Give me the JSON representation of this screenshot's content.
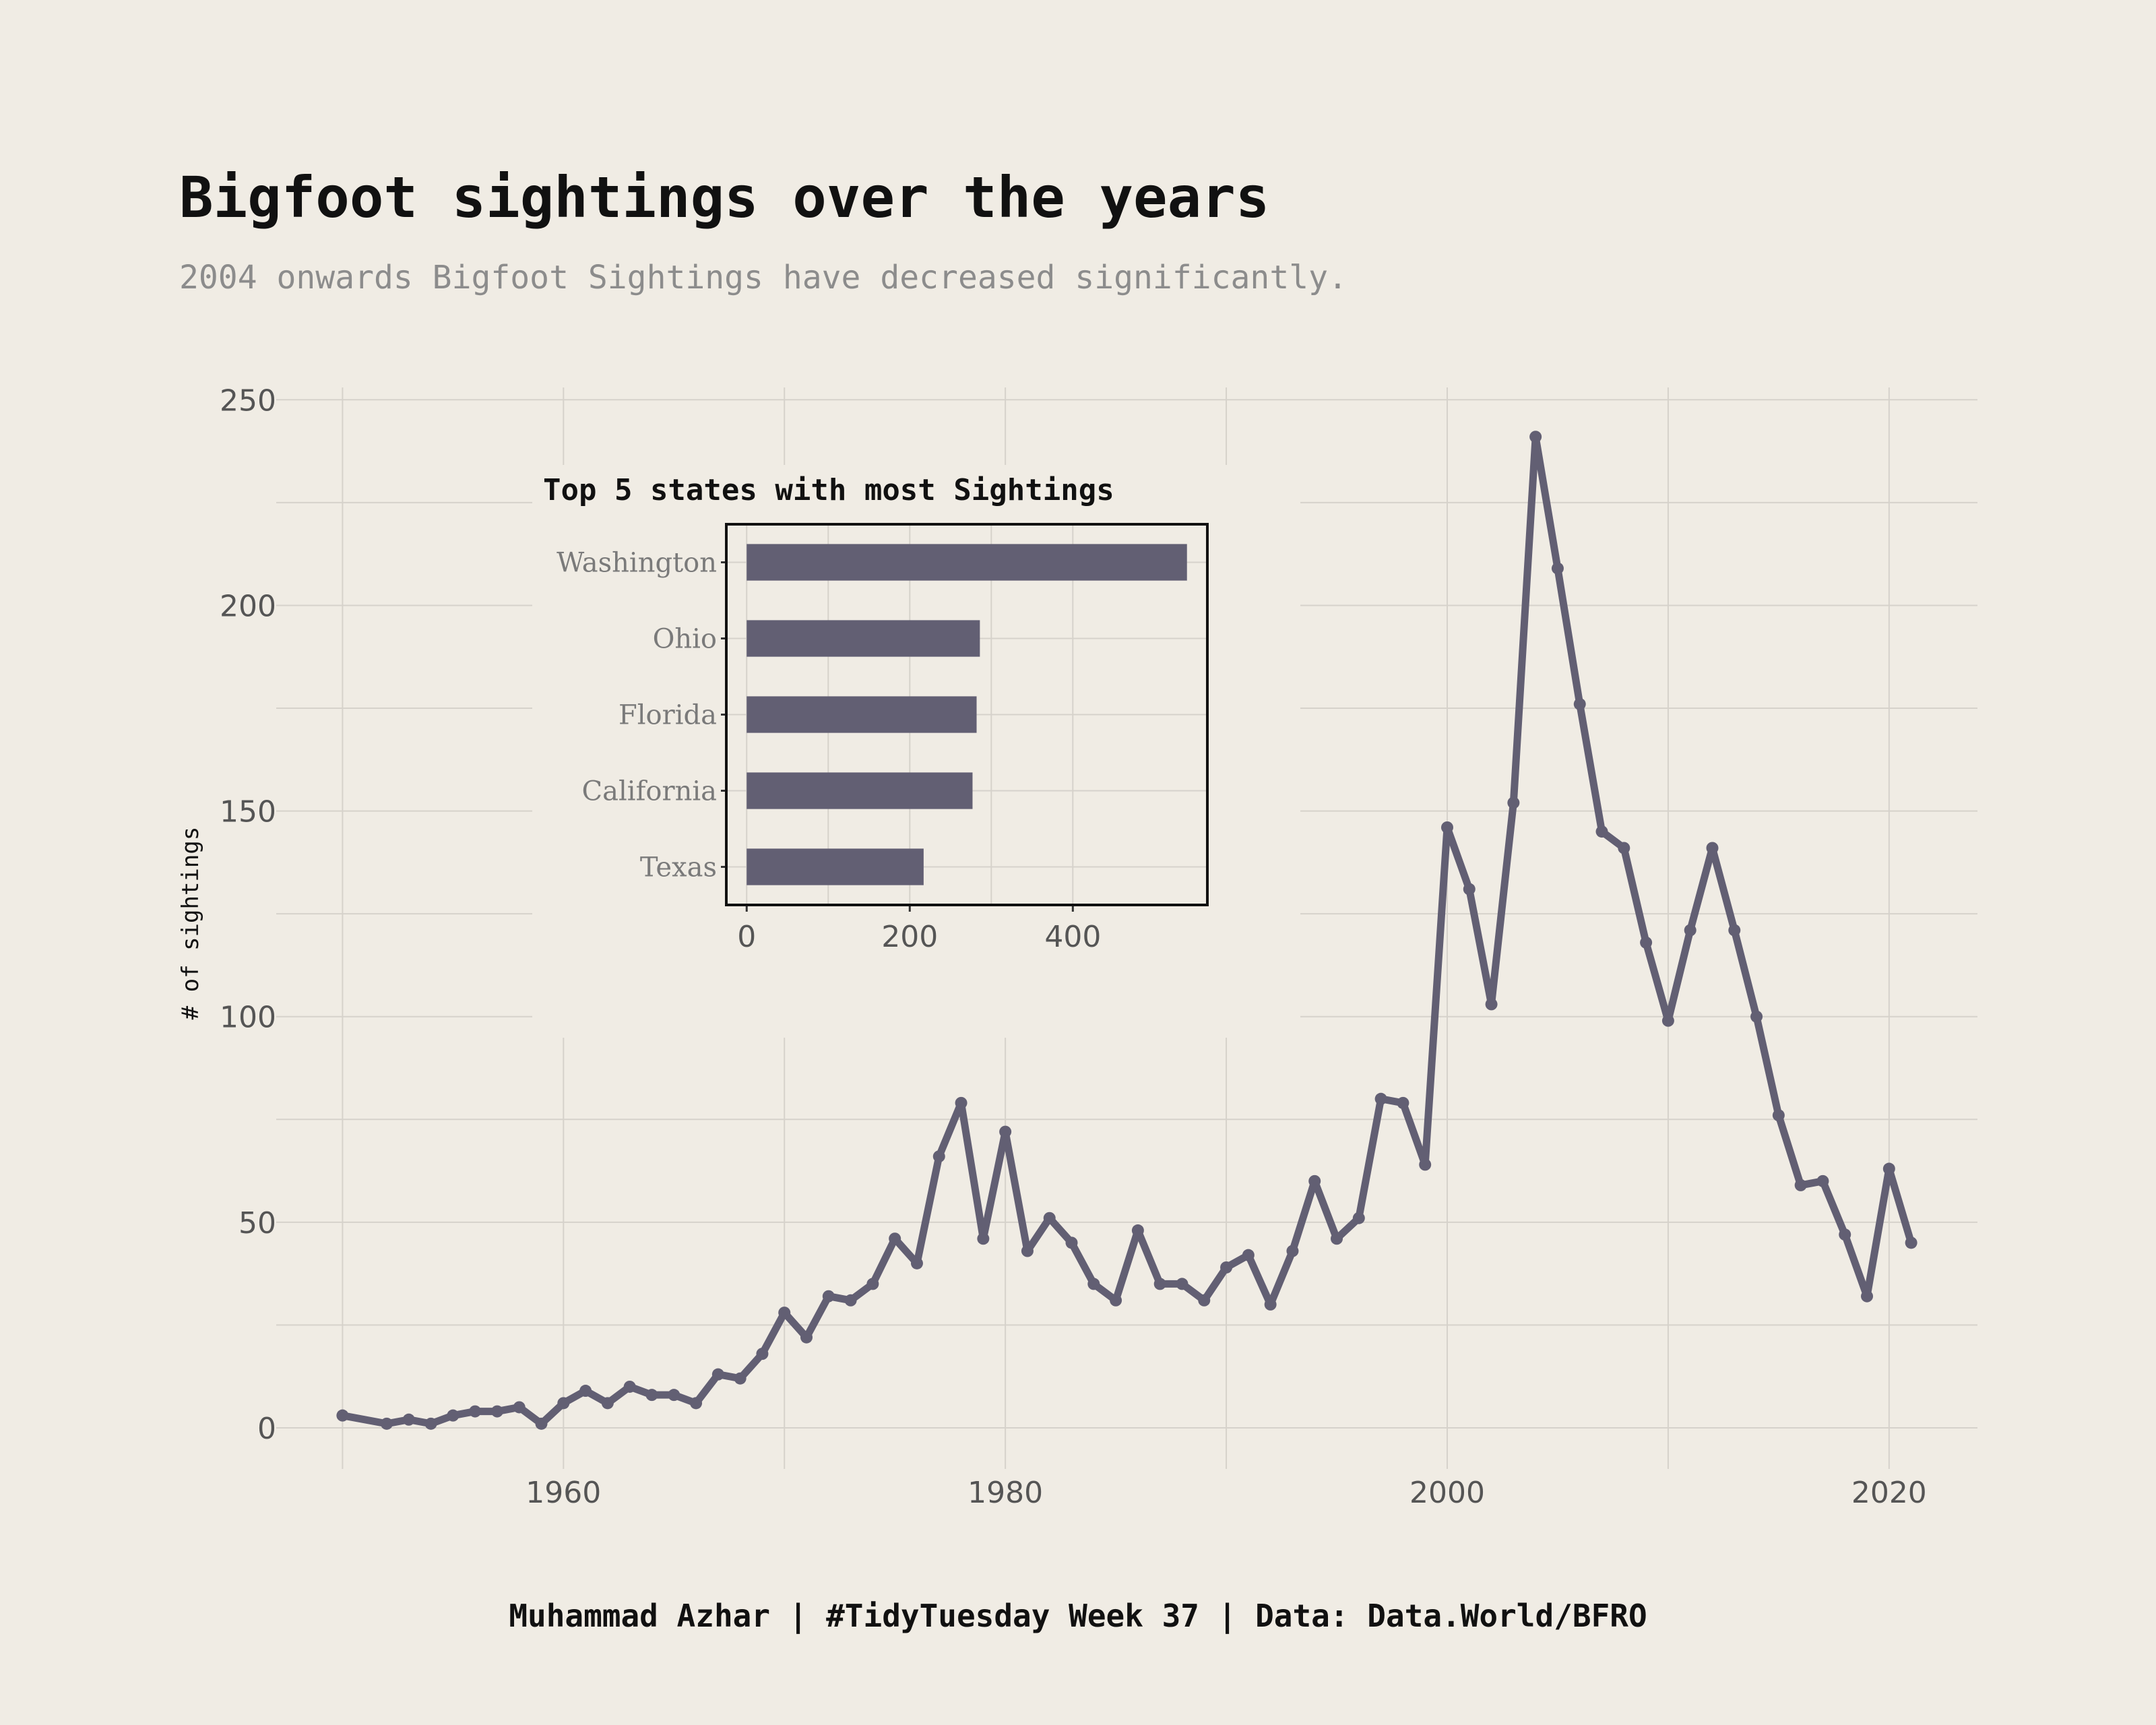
{
  "chart_data": [
    {
      "type": "line",
      "title": "Bigfoot sightings over the years",
      "subtitle": "2004 onwards Bigfoot Sightings have decreased significantly.",
      "xlabel": "",
      "ylabel": "# of sightings",
      "xlim": [
        1947,
        2024
      ],
      "ylim": [
        -10,
        253
      ],
      "x_ticks": [
        1960,
        1980,
        2000,
        2020
      ],
      "y_ticks": [
        0,
        50,
        100,
        150,
        200,
        250
      ],
      "grid": true,
      "color": "#625f73",
      "series": [
        {
          "x": [
            1950,
            1952,
            1953,
            1954,
            1955,
            1956,
            1957,
            1958,
            1959,
            1960,
            1961,
            1962,
            1963,
            1964,
            1965,
            1966,
            1967,
            1968,
            1969,
            1970,
            1971,
            1972,
            1973,
            1974,
            1975,
            1976,
            1977,
            1978,
            1979,
            1980,
            1981,
            1982,
            1983,
            1984,
            1985,
            1986,
            1987,
            1988,
            1989,
            1990,
            1991,
            1992,
            1993,
            1994,
            1995,
            1996,
            1997,
            1998,
            1999,
            2000,
            2001,
            2002,
            2003,
            2004,
            2005,
            2006,
            2007,
            2008,
            2009,
            2010,
            2011,
            2012,
            2013,
            2014,
            2015,
            2016,
            2017,
            2018,
            2019,
            2020,
            2021
          ],
          "values": [
            3,
            1,
            2,
            1,
            3,
            4,
            4,
            5,
            1,
            6,
            9,
            6,
            10,
            8,
            8,
            6,
            13,
            12,
            18,
            28,
            22,
            32,
            31,
            35,
            46,
            40,
            66,
            79,
            46,
            72,
            43,
            51,
            45,
            35,
            31,
            48,
            35,
            35,
            31,
            39,
            42,
            30,
            43,
            60,
            46,
            51,
            80,
            79,
            64,
            146,
            131,
            103,
            152,
            241,
            209,
            176,
            145,
            141,
            118,
            99,
            121,
            141,
            121,
            100,
            76,
            59,
            60,
            47,
            32,
            63,
            45
          ]
        }
      ]
    },
    {
      "type": "bar",
      "orientation": "horizontal",
      "title": "Top 5 states with most Sightings",
      "categories": [
        "Washington",
        "Ohio",
        "Florida",
        "California",
        "Texas"
      ],
      "values": [
        540,
        286,
        282,
        277,
        217
      ],
      "xlim": [
        -25,
        565
      ],
      "x_ticks": [
        0,
        200,
        400
      ],
      "grid": true,
      "color": "#625f73"
    }
  ],
  "caption": "Muhammad Azhar | #TidyTuesday Week 37 | Data: Data.World/BFRO"
}
